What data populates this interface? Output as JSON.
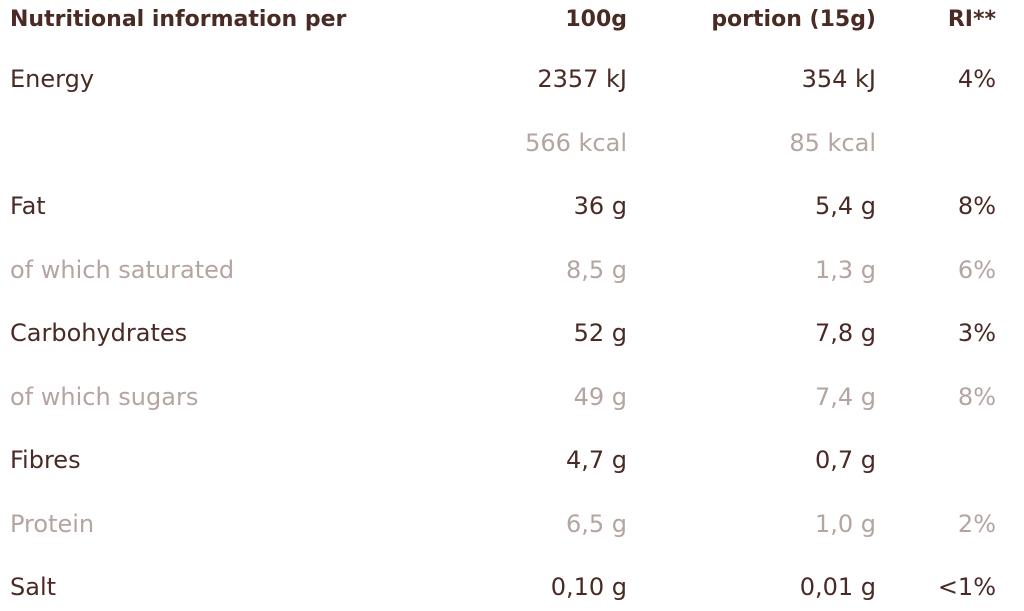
{
  "table": {
    "header": {
      "label": "Nutritional information per",
      "per_100g": "100g",
      "portion": "portion (15g)",
      "ri": "RI**",
      "color": "#4a2a25"
    },
    "rows": [
      {
        "label": "Energy",
        "per_100g": "2357 kJ",
        "portion": "354 kJ",
        "ri": "4%",
        "color": "#4a2a25"
      },
      {
        "per_100g": "566 kcal",
        "portion": "85 kcal",
        "color": "#b5a5a1"
      },
      {
        "label": "Fat",
        "per_100g": "36 g",
        "portion": "5,4 g",
        "ri": "8%",
        "color": "#4a2a25"
      },
      {
        "label": "of which saturated",
        "per_100g": "8,5 g",
        "portion": "1,3 g",
        "ri": "6%",
        "color": "#b5a5a1"
      },
      {
        "label": "Carbohydrates",
        "per_100g": "52 g",
        "portion": "7,8 g",
        "ri": "3%",
        "color": "#4a2a25"
      },
      {
        "label": "of which sugars",
        "per_100g": "49 g",
        "portion": "7,4 g",
        "ri": "8%",
        "color": "#b5a5a1"
      },
      {
        "label": "Fibres",
        "per_100g": "4,7 g",
        "portion": "0,7 g",
        "color": "#4a2a25"
      },
      {
        "label": "Protein",
        "per_100g": "6,5 g",
        "portion": "1,0 g",
        "ri": "2%",
        "color": "#b5a5a1"
      },
      {
        "label": "Salt",
        "per_100g": "0,10 g",
        "portion": "0,01 g",
        "ri": "<1%",
        "color": "#4a2a25"
      }
    ]
  }
}
